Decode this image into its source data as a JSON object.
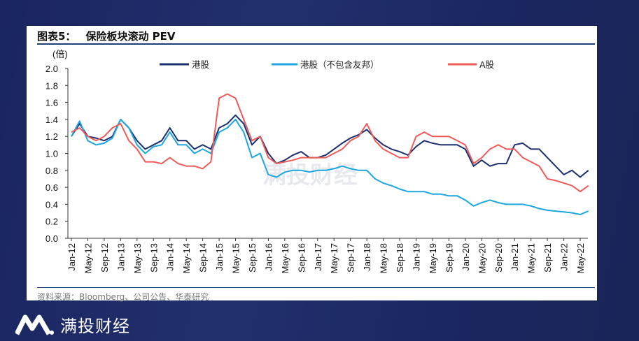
{
  "title": {
    "label": "图表5：",
    "text": "保险板块滚动 PEV"
  },
  "source": "资料来源：Bloomberg、公司公告、华泰研究",
  "watermark": "满投财经",
  "footer": {
    "brand": "满投财经"
  },
  "colors": {
    "hk": "#1c2f6e",
    "hk_ex": "#1ea6e0",
    "a": "#ef5a5a",
    "bg": "#1b2761",
    "rule": "#1f3f7a"
  },
  "chart_data": {
    "type": "line",
    "title": "保险板块滚动 PEV",
    "ylabel": "(倍)",
    "ylim": [
      0,
      2.0
    ],
    "yticks": [
      "0.0",
      "0.2",
      "0.4",
      "0.6",
      "0.8",
      "1.0",
      "1.2",
      "1.4",
      "1.6",
      "1.8",
      "2.0"
    ],
    "xtick_labels": [
      "Jan-12",
      "May-12",
      "Sep-12",
      "Jan-13",
      "May-13",
      "Sep-13",
      "Jan-14",
      "May-14",
      "Sep-14",
      "Jan-15",
      "May-15",
      "Sep-15",
      "Jan-16",
      "May-16",
      "Sep-16",
      "Jan-17",
      "May-17",
      "Sep-17",
      "Jan-18",
      "May-18",
      "Sep-18",
      "Jan-19",
      "May-19",
      "Sep-19",
      "Jan-20",
      "May-20",
      "Sep-20",
      "Jan-21",
      "May-21",
      "Sep-21",
      "Jan-22",
      "May-22"
    ],
    "x_start": "2012-01",
    "x_step_months": 2,
    "legend_position": "top",
    "series": [
      {
        "name": "港股",
        "key": "hk",
        "values": [
          1.2,
          1.35,
          1.2,
          1.18,
          1.15,
          1.2,
          1.4,
          1.3,
          1.15,
          1.05,
          1.1,
          1.15,
          1.3,
          1.15,
          1.15,
          1.05,
          1.1,
          1.05,
          1.3,
          1.35,
          1.45,
          1.35,
          1.1,
          1.2,
          1.0,
          0.88,
          0.92,
          0.98,
          1.02,
          0.95,
          0.95,
          0.98,
          1.05,
          1.12,
          1.18,
          1.22,
          1.28,
          1.18,
          1.1,
          1.05,
          1.02,
          0.98,
          1.08,
          1.15,
          1.12,
          1.1,
          1.1,
          1.1,
          1.05,
          0.85,
          0.92,
          0.85,
          0.88,
          0.88,
          1.1,
          1.12,
          1.05,
          1.05,
          0.95,
          0.85,
          0.75,
          0.8,
          0.72,
          0.8
        ]
      },
      {
        "name": "港股（不包含友邦）",
        "key": "hk_ex",
        "values": [
          1.2,
          1.38,
          1.15,
          1.1,
          1.12,
          1.18,
          1.4,
          1.3,
          1.1,
          1.0,
          1.08,
          1.1,
          1.25,
          1.1,
          1.1,
          1.0,
          1.05,
          1.0,
          1.25,
          1.3,
          1.4,
          1.25,
          0.95,
          1.0,
          0.75,
          0.72,
          0.78,
          0.8,
          0.8,
          0.78,
          0.8,
          0.8,
          0.82,
          0.85,
          0.82,
          0.8,
          0.8,
          0.7,
          0.65,
          0.62,
          0.58,
          0.55,
          0.55,
          0.55,
          0.52,
          0.52,
          0.5,
          0.5,
          0.45,
          0.38,
          0.42,
          0.45,
          0.42,
          0.4,
          0.4,
          0.4,
          0.38,
          0.35,
          0.33,
          0.32,
          0.31,
          0.3,
          0.28,
          0.32
        ]
      },
      {
        "name": "A股",
        "key": "a",
        "values": [
          1.25,
          1.3,
          1.2,
          1.15,
          1.2,
          1.3,
          1.35,
          1.15,
          1.05,
          0.9,
          0.9,
          0.88,
          0.95,
          0.88,
          0.85,
          0.85,
          0.82,
          0.9,
          1.65,
          1.7,
          1.65,
          1.4,
          1.15,
          1.2,
          0.95,
          0.88,
          0.9,
          0.92,
          0.95,
          0.95,
          0.95,
          0.95,
          1.0,
          1.05,
          1.15,
          1.2,
          1.35,
          1.15,
          1.05,
          1.0,
          0.95,
          0.95,
          1.2,
          1.25,
          1.2,
          1.2,
          1.2,
          1.15,
          1.1,
          0.88,
          0.95,
          1.05,
          1.1,
          1.05,
          1.05,
          0.95,
          0.9,
          0.85,
          0.7,
          0.68,
          0.65,
          0.62,
          0.55,
          0.62
        ]
      }
    ]
  }
}
